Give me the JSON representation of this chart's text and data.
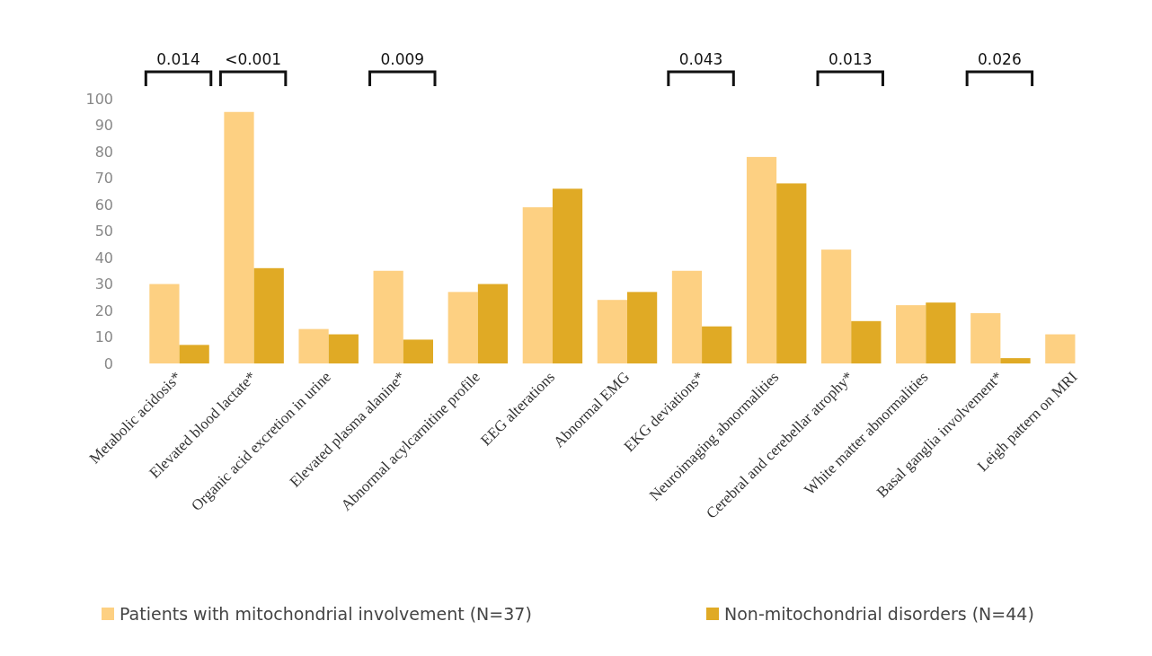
{
  "chart_data": {
    "type": "bar",
    "categories": [
      "Metabolic acidosis*",
      "Elevated blood lactate*",
      "Organic acid excretion in urine",
      "Elevated plasma alanine*",
      "Abnormal acylcarnitine profile",
      "EEG alterations",
      "Abnormal EMG",
      "EKG deviations*",
      "Neuroimaging abnormalities",
      "Cerebral and cerebellar atrophy*",
      "White matter abnormalities",
      "Basal ganglia involvement*",
      "Leigh pattern on MRI"
    ],
    "series": [
      {
        "name": "Patients with mitochondrial involvement (N=37)",
        "color": "#fdd082",
        "values": [
          30,
          95,
          13,
          35,
          27,
          59,
          24,
          35,
          78,
          43,
          22,
          19,
          11
        ]
      },
      {
        "name": "Non-mitochondrial disorders (N=44)",
        "color": "#e0aa25",
        "values": [
          7,
          36,
          11,
          9,
          30,
          66,
          27,
          14,
          68,
          16,
          23,
          2,
          0
        ]
      }
    ],
    "ylim": [
      0,
      100
    ],
    "yticks": [
      0,
      10,
      20,
      30,
      40,
      50,
      60,
      70,
      80,
      90,
      100
    ],
    "grid": false,
    "legend": "bottom",
    "annotations": [
      "0.014",
      "<0.001",
      "0.009",
      "0.043",
      "0.013",
      "0.026"
    ]
  }
}
